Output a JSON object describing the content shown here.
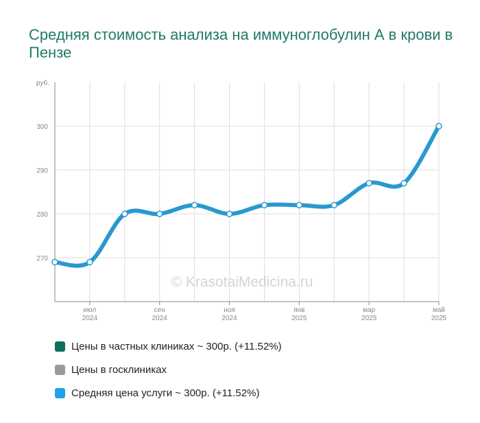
{
  "title": "Средняя стоимость анализа на иммуноглобулин А в крови в Пензе",
  "watermark": "© KrasotaiMedicina.ru",
  "chart_data": {
    "type": "line",
    "y_unit_label": "руб.",
    "ylim": [
      260,
      310
    ],
    "yticks": [
      270,
      280,
      290,
      300
    ],
    "x_tick_labels": [
      {
        "month": "июл",
        "year": "2024"
      },
      {
        "month": "сен",
        "year": "2024"
      },
      {
        "month": "ноя",
        "year": "2024"
      },
      {
        "month": "янв",
        "year": "2025"
      },
      {
        "month": "мар",
        "year": "2025"
      },
      {
        "month": "май",
        "year": "2025"
      }
    ],
    "x": [
      "2024-06",
      "2024-07",
      "2024-08",
      "2024-09",
      "2024-10",
      "2024-11",
      "2024-12",
      "2025-01",
      "2025-02",
      "2025-03",
      "2025-04",
      "2025-05"
    ],
    "series": [
      {
        "name": "Средняя цена услуги",
        "color": "#2a98d0",
        "values": [
          269,
          269,
          280,
          280,
          282,
          280,
          282,
          282,
          282,
          287,
          287,
          300
        ]
      }
    ],
    "grid": true
  },
  "legend": [
    {
      "text": "Цены в частных клиниках ~ 300р. (+11.52%)",
      "color": "#116c5e"
    },
    {
      "text": "Цены в госклиниках",
      "color": "#9a9a9a"
    },
    {
      "text": "Средняя цена услуги ~ 300р. (+11.52%)",
      "color": "#23a0e6"
    }
  ]
}
